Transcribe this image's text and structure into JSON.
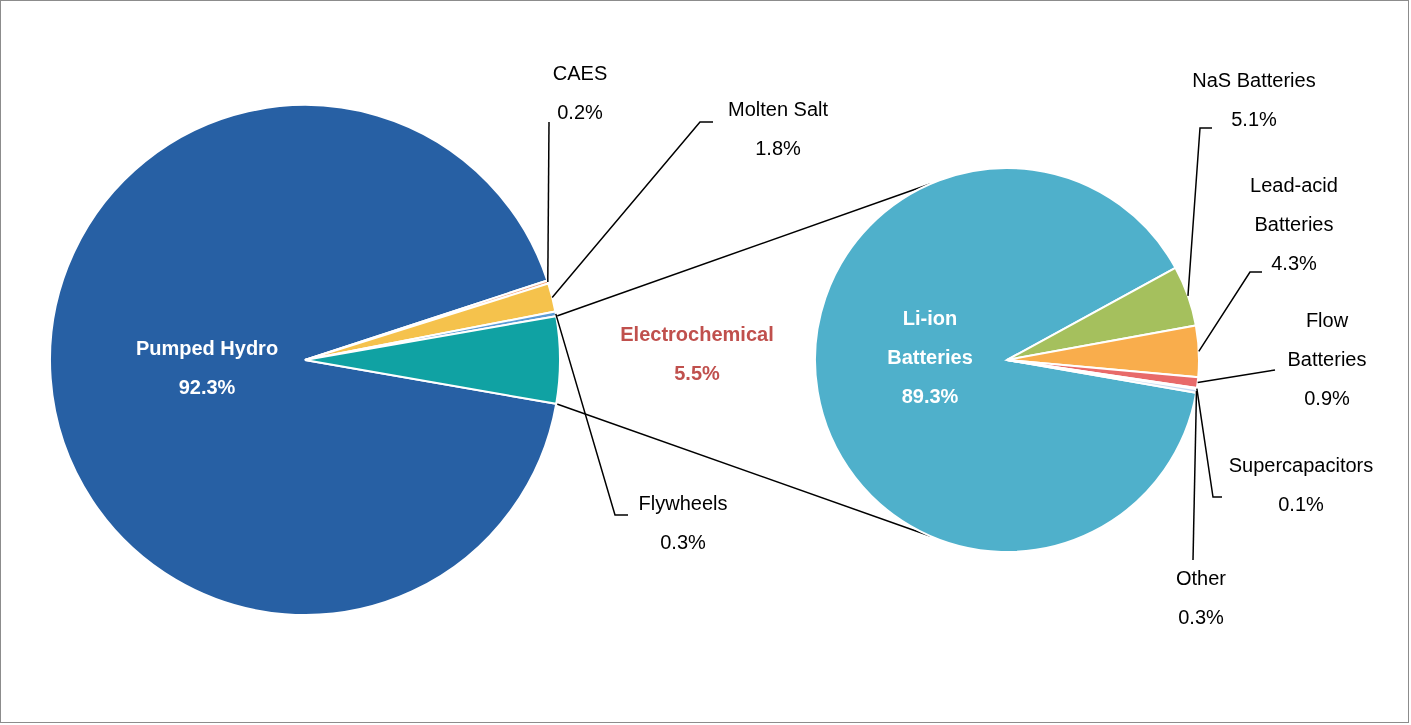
{
  "chart_data": [
    {
      "type": "pie",
      "categories": [
        "Pumped Hydro",
        "CAES",
        "Molten Salt",
        "Flywheels",
        "Electrochemical"
      ],
      "values": [
        92.3,
        0.2,
        1.8,
        0.3,
        5.5
      ],
      "value_labels": [
        "92.3%",
        "0.2%",
        "1.8%",
        "0.3%",
        "5.5%"
      ],
      "colors": [
        "#2760a4",
        "#f4a582",
        "#f5c24c",
        "#5b9bd5",
        "#10a2a3"
      ]
    },
    {
      "type": "pie",
      "categories": [
        "Li-ion Batteries",
        "NaS Batteries",
        "Lead-acid Batteries",
        "Flow Batteries",
        "Supercapacitors",
        "Other"
      ],
      "values": [
        89.3,
        5.1,
        4.3,
        0.9,
        0.1,
        0.3
      ],
      "value_labels": [
        "89.3%",
        "5.1%",
        "4.3%",
        "0.9%",
        "0.1%",
        "0.3%"
      ],
      "colors": [
        "#4fb0cb",
        "#a5c05d",
        "#f9ad4c",
        "#e86a6a",
        "#8a8fd6",
        "#c6d9f1"
      ]
    }
  ]
}
